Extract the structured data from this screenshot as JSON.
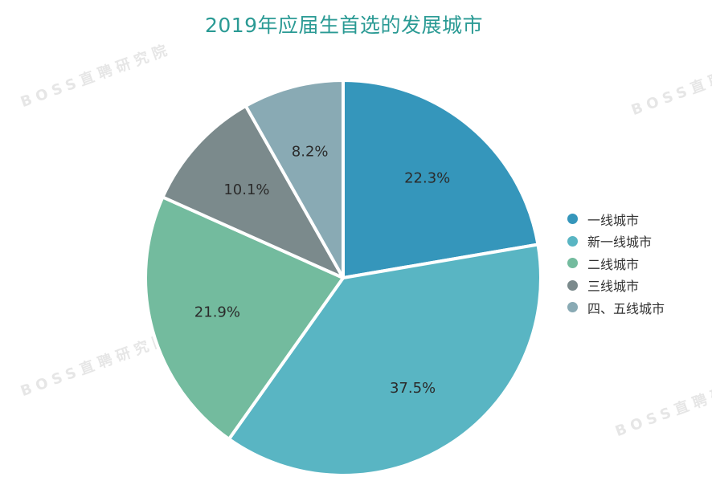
{
  "title": "2019年应届生首选的发展城市",
  "watermark": "BOSS直聘研究院",
  "chart_data": {
    "type": "pie",
    "title": "2019年应届生首选的发展城市",
    "legend_position": "right",
    "slices": [
      {
        "name": "一线城市",
        "value": 22.3,
        "label": "22.3%",
        "color": "#3596bb"
      },
      {
        "name": "新一线城市",
        "value": 37.5,
        "label": "37.5%",
        "color": "#59b5c3"
      },
      {
        "name": "二线城市",
        "value": 21.9,
        "label": "21.9%",
        "color": "#73bb9e"
      },
      {
        "name": "三线城市",
        "value": 10.1,
        "label": "10.1%",
        "color": "#7b8a8c"
      },
      {
        "name": "四、五线城市",
        "value": 8.2,
        "label": "8.2%",
        "color": "#89aab4"
      }
    ]
  }
}
